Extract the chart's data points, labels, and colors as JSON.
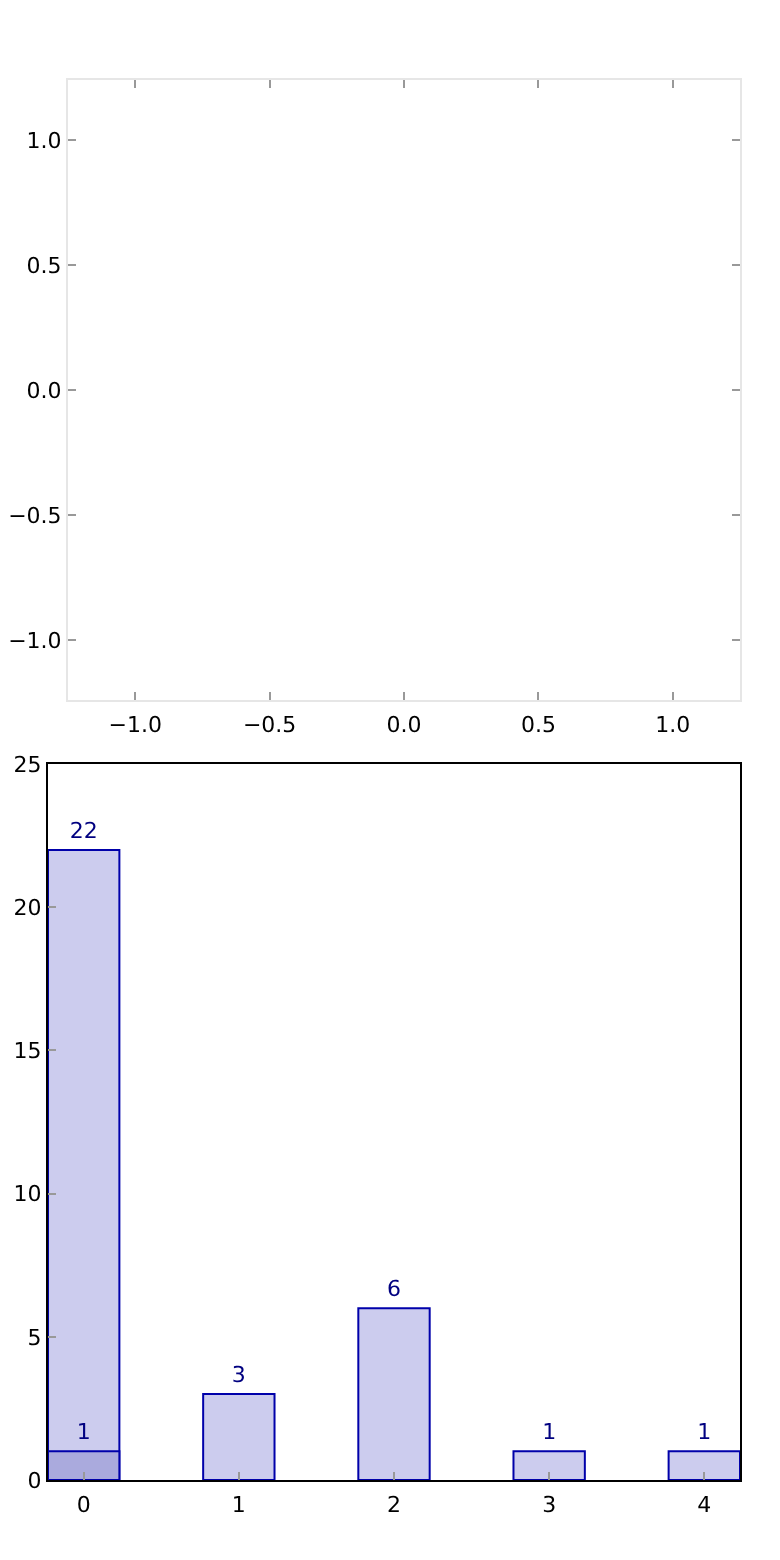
{
  "chart_data": [
    {
      "type": "scatter",
      "xlim": [
        -1.25,
        1.25
      ],
      "ylim": [
        -1.24,
        1.24
      ],
      "xticks": [
        {
          "value": -1,
          "label": "−1.0"
        },
        {
          "value": -0.5,
          "label": "−0.5"
        },
        {
          "value": 0,
          "label": "0.0"
        },
        {
          "value": 0.5,
          "label": "0.5"
        },
        {
          "value": 1,
          "label": "1.0"
        }
      ],
      "yticks": [
        {
          "value": -1,
          "label": "−1.0"
        },
        {
          "value": -0.5,
          "label": "−0.5"
        },
        {
          "value": 0,
          "label": "0.0"
        },
        {
          "value": 0.5,
          "label": "0.5"
        },
        {
          "value": 1,
          "label": "1.0"
        }
      ],
      "grid": false
    },
    {
      "type": "bar",
      "x": [
        0,
        1,
        2,
        3,
        4
      ],
      "series": [
        {
          "color": "#ccccee",
          "values": [
            22,
            3,
            6,
            1,
            1
          ]
        },
        {
          "color": "#aaaadd",
          "values": [
            1,
            null,
            null,
            null,
            null
          ]
        }
      ],
      "xlim": [
        -0.23,
        4.23
      ],
      "ylim": [
        0,
        25
      ],
      "xticks": [
        0,
        1,
        2,
        3,
        4
      ],
      "yticks": [
        0,
        5,
        10,
        15,
        20,
        25
      ],
      "data_labels": true,
      "grid": false
    }
  ]
}
